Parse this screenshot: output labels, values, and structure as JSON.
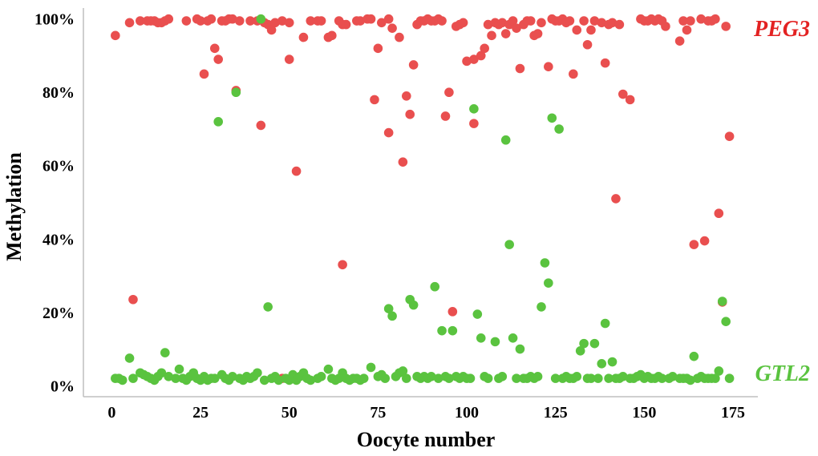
{
  "chart_data": {
    "type": "scatter",
    "title": "",
    "xlabel": "Oocyte number",
    "ylabel": "Methylation",
    "xlim": [
      -8,
      182
    ],
    "ylim": [
      -3,
      103
    ],
    "xticks": [
      0,
      25,
      50,
      75,
      100,
      125,
      150,
      175
    ],
    "xtick_labels": [
      "0",
      "25",
      "50",
      "75",
      "100",
      "125",
      "150",
      "175"
    ],
    "yticks": [
      0,
      20,
      40,
      60,
      80,
      100
    ],
    "ytick_labels": [
      "0%",
      "20%",
      "40%",
      "60%",
      "80%",
      "100%"
    ],
    "grid": false,
    "series": [
      {
        "name": "PEG3",
        "color": "#e94f4f",
        "label_color": "#e32222",
        "points": [
          [
            1,
            95.5
          ],
          [
            5,
            99
          ],
          [
            6,
            23.5
          ],
          [
            8,
            99.5
          ],
          [
            10,
            99.5
          ],
          [
            11,
            99.5
          ],
          [
            12,
            99.5
          ],
          [
            13,
            99
          ],
          [
            14,
            99
          ],
          [
            15,
            99.5
          ],
          [
            16,
            100
          ],
          [
            21,
            99.5
          ],
          [
            24,
            100
          ],
          [
            25,
            99.5
          ],
          [
            26,
            85
          ],
          [
            27,
            99.5
          ],
          [
            28,
            100
          ],
          [
            29,
            92
          ],
          [
            30,
            89
          ],
          [
            31,
            99.5
          ],
          [
            32,
            99.5
          ],
          [
            33,
            100
          ],
          [
            34,
            100
          ],
          [
            35,
            80.5
          ],
          [
            36,
            99.5
          ],
          [
            39,
            99.5
          ],
          [
            41,
            99.5
          ],
          [
            42,
            71
          ],
          [
            43,
            99
          ],
          [
            44,
            98.5
          ],
          [
            45,
            97
          ],
          [
            46,
            99
          ],
          [
            48,
            2
          ],
          [
            48,
            99.5
          ],
          [
            50,
            99
          ],
          [
            50,
            89
          ],
          [
            52,
            58.5
          ],
          [
            54,
            95
          ],
          [
            56,
            99.5
          ],
          [
            58,
            99.5
          ],
          [
            59,
            99.5
          ],
          [
            61,
            95
          ],
          [
            62,
            95.5
          ],
          [
            64,
            99.5
          ],
          [
            65,
            33
          ],
          [
            65,
            98.5
          ],
          [
            66,
            98.5
          ],
          [
            69,
            99.5
          ],
          [
            70,
            99.5
          ],
          [
            72,
            100
          ],
          [
            73,
            100
          ],
          [
            74,
            78
          ],
          [
            75,
            92
          ],
          [
            76,
            99
          ],
          [
            78,
            100
          ],
          [
            78,
            69
          ],
          [
            79,
            97.5
          ],
          [
            81,
            95
          ],
          [
            82,
            61
          ],
          [
            83,
            79
          ],
          [
            84,
            74
          ],
          [
            85,
            87.5
          ],
          [
            86,
            98.5
          ],
          [
            87,
            99.5
          ],
          [
            88,
            99.5
          ],
          [
            89,
            100
          ],
          [
            90,
            99.5
          ],
          [
            91,
            99.5
          ],
          [
            92,
            100
          ],
          [
            93,
            99.5
          ],
          [
            94,
            73.5
          ],
          [
            95,
            80
          ],
          [
            96,
            20.2
          ],
          [
            97,
            98
          ],
          [
            98,
            98.5
          ],
          [
            99,
            99
          ],
          [
            100,
            88.5
          ],
          [
            102,
            71.5
          ],
          [
            102,
            89
          ],
          [
            104,
            90
          ],
          [
            105,
            92
          ],
          [
            106,
            98.5
          ],
          [
            107,
            95.5
          ],
          [
            108,
            99
          ],
          [
            109,
            98.5
          ],
          [
            110,
            99
          ],
          [
            111,
            96
          ],
          [
            112,
            98.5
          ],
          [
            113,
            99.5
          ],
          [
            114,
            97.5
          ],
          [
            115,
            86.5
          ],
          [
            116,
            98.5
          ],
          [
            117,
            99.5
          ],
          [
            118,
            99.5
          ],
          [
            119,
            95.5
          ],
          [
            120,
            96
          ],
          [
            121,
            99
          ],
          [
            123,
            87
          ],
          [
            124,
            100
          ],
          [
            125,
            99.5
          ],
          [
            126,
            99.5
          ],
          [
            127,
            100
          ],
          [
            128,
            99
          ],
          [
            129,
            99.5
          ],
          [
            130,
            85
          ],
          [
            131,
            97
          ],
          [
            133,
            99.5
          ],
          [
            134,
            93
          ],
          [
            135,
            97
          ],
          [
            136,
            99.5
          ],
          [
            138,
            99
          ],
          [
            139,
            88
          ],
          [
            140,
            98.5
          ],
          [
            141,
            99
          ],
          [
            142,
            51
          ],
          [
            143,
            98.5
          ],
          [
            144,
            79.5
          ],
          [
            146,
            78
          ],
          [
            149,
            100
          ],
          [
            150,
            99.5
          ],
          [
            151,
            99.5
          ],
          [
            152,
            100
          ],
          [
            153,
            99.5
          ],
          [
            154,
            100
          ],
          [
            155,
            99.5
          ],
          [
            156,
            98
          ],
          [
            160,
            94
          ],
          [
            161,
            99.5
          ],
          [
            162,
            97
          ],
          [
            163,
            99.5
          ],
          [
            164,
            38.5
          ],
          [
            166,
            100
          ],
          [
            167,
            39.5
          ],
          [
            168,
            99.5
          ],
          [
            169,
            99.5
          ],
          [
            170,
            100
          ],
          [
            171,
            47
          ],
          [
            172,
            22.8
          ],
          [
            173,
            98
          ],
          [
            174,
            68
          ]
        ]
      },
      {
        "name": "GTL2",
        "color": "#5ac33f",
        "label_color": "#5ac33f",
        "points": [
          [
            1,
            2
          ],
          [
            2,
            2
          ],
          [
            3,
            1.5
          ],
          [
            5,
            7.5
          ],
          [
            6,
            2
          ],
          [
            8,
            3.5
          ],
          [
            9,
            3
          ],
          [
            10,
            2.5
          ],
          [
            11,
            2
          ],
          [
            12,
            1.5
          ],
          [
            13,
            2.5
          ],
          [
            14,
            3.5
          ],
          [
            15,
            9
          ],
          [
            16,
            2.5
          ],
          [
            18,
            2
          ],
          [
            19,
            4.5
          ],
          [
            20,
            2
          ],
          [
            21,
            1.5
          ],
          [
            22,
            2.5
          ],
          [
            23,
            3.5
          ],
          [
            24,
            2
          ],
          [
            25,
            1.5
          ],
          [
            26,
            2.5
          ],
          [
            27,
            1.5
          ],
          [
            28,
            2
          ],
          [
            29,
            2
          ],
          [
            30,
            72
          ],
          [
            31,
            3
          ],
          [
            32,
            2
          ],
          [
            33,
            1.5
          ],
          [
            34,
            2.5
          ],
          [
            35,
            80
          ],
          [
            36,
            2
          ],
          [
            37,
            1.5
          ],
          [
            38,
            2.5
          ],
          [
            39,
            2
          ],
          [
            40,
            2.5
          ],
          [
            41,
            3.5
          ],
          [
            42,
            100
          ],
          [
            43,
            1.5
          ],
          [
            44,
            21.5
          ],
          [
            45,
            2
          ],
          [
            46,
            2.5
          ],
          [
            47,
            1.5
          ],
          [
            49,
            2
          ],
          [
            50,
            1.5
          ],
          [
            51,
            3
          ],
          [
            52,
            1.5
          ],
          [
            53,
            2.5
          ],
          [
            54,
            3.5
          ],
          [
            55,
            2
          ],
          [
            56,
            1.5
          ],
          [
            58,
            2
          ],
          [
            59,
            2.5
          ],
          [
            61,
            4.5
          ],
          [
            62,
            2
          ],
          [
            63,
            1.5
          ],
          [
            64,
            2
          ],
          [
            65,
            3.5
          ],
          [
            66,
            2
          ],
          [
            67,
            1.5
          ],
          [
            68,
            2
          ],
          [
            69,
            2
          ],
          [
            70,
            1.5
          ],
          [
            71,
            2
          ],
          [
            73,
            5
          ],
          [
            75,
            2.5
          ],
          [
            76,
            3
          ],
          [
            77,
            2
          ],
          [
            78,
            21
          ],
          [
            79,
            19
          ],
          [
            80,
            2.5
          ],
          [
            81,
            3.5
          ],
          [
            82,
            4
          ],
          [
            83,
            2
          ],
          [
            84,
            23.5
          ],
          [
            85,
            22
          ],
          [
            86,
            2.5
          ],
          [
            87,
            2
          ],
          [
            88,
            2.5
          ],
          [
            89,
            2
          ],
          [
            90,
            2.5
          ],
          [
            91,
            27
          ],
          [
            92,
            2
          ],
          [
            93,
            15
          ],
          [
            94,
            2.5
          ],
          [
            95,
            2
          ],
          [
            96,
            15
          ],
          [
            97,
            2.5
          ],
          [
            98,
            2
          ],
          [
            99,
            2.5
          ],
          [
            100,
            2
          ],
          [
            101,
            2
          ],
          [
            102,
            75.5
          ],
          [
            103,
            19.5
          ],
          [
            104,
            13
          ],
          [
            105,
            2.5
          ],
          [
            106,
            2
          ],
          [
            108,
            12
          ],
          [
            109,
            2
          ],
          [
            110,
            2.5
          ],
          [
            111,
            67
          ],
          [
            112,
            38.5
          ],
          [
            113,
            13
          ],
          [
            114,
            2
          ],
          [
            115,
            10
          ],
          [
            116,
            2
          ],
          [
            117,
            2
          ],
          [
            118,
            2.5
          ],
          [
            119,
            2
          ],
          [
            120,
            2.5
          ],
          [
            121,
            21.5
          ],
          [
            122,
            33.5
          ],
          [
            123,
            28
          ],
          [
            124,
            73
          ],
          [
            125,
            2
          ],
          [
            126,
            70
          ],
          [
            127,
            2
          ],
          [
            128,
            2.5
          ],
          [
            129,
            2
          ],
          [
            130,
            2
          ],
          [
            131,
            2.5
          ],
          [
            132,
            9.5
          ],
          [
            133,
            11.5
          ],
          [
            134,
            2
          ],
          [
            135,
            2
          ],
          [
            136,
            11.5
          ],
          [
            137,
            2
          ],
          [
            138,
            6
          ],
          [
            139,
            17
          ],
          [
            140,
            2
          ],
          [
            141,
            6.5
          ],
          [
            142,
            2
          ],
          [
            143,
            2
          ],
          [
            144,
            2.5
          ],
          [
            146,
            2
          ],
          [
            147,
            2
          ],
          [
            148,
            2.5
          ],
          [
            149,
            3
          ],
          [
            150,
            2
          ],
          [
            151,
            2.5
          ],
          [
            152,
            2
          ],
          [
            153,
            2
          ],
          [
            154,
            2.5
          ],
          [
            155,
            2
          ],
          [
            157,
            2
          ],
          [
            158,
            2.5
          ],
          [
            160,
            2
          ],
          [
            161,
            2
          ],
          [
            162,
            2
          ],
          [
            163,
            1.5
          ],
          [
            164,
            8
          ],
          [
            165,
            2
          ],
          [
            166,
            2.5
          ],
          [
            167,
            2
          ],
          [
            168,
            2
          ],
          [
            169,
            2
          ],
          [
            170,
            2
          ],
          [
            171,
            4
          ],
          [
            172,
            23
          ],
          [
            173,
            17.5
          ],
          [
            174,
            2
          ]
        ]
      }
    ]
  }
}
